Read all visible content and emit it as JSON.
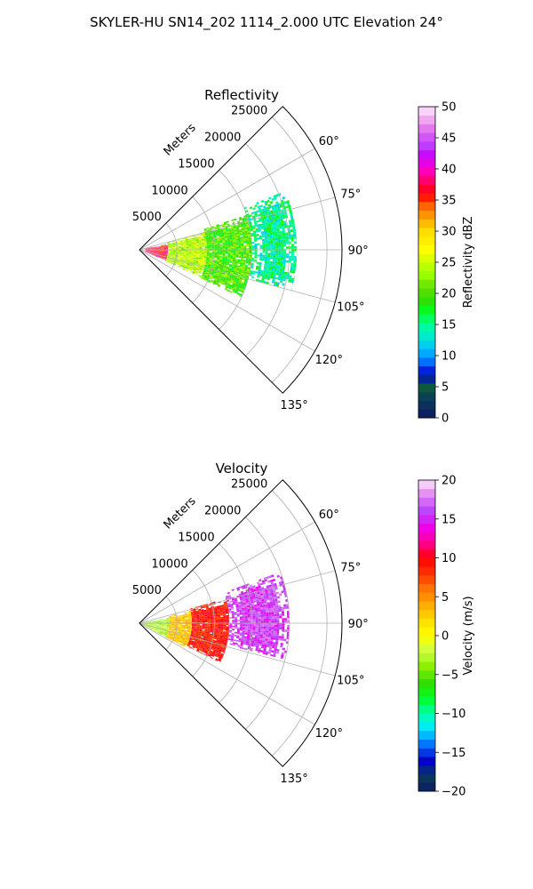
{
  "figure": {
    "title": "SKYLER-HU  SN14_202  1114_2.000 UTC Elevation 24°"
  },
  "chart_data": [
    {
      "type": "heatmap",
      "projection": "polar-sector",
      "title": "Reflectivity",
      "radial_axis_label": "Meters",
      "radial_ticks": [
        5000,
        10000,
        15000,
        20000,
        25000
      ],
      "radial_tick_labels": [
        "5000",
        "10000",
        "15000",
        "20000",
        "25000"
      ],
      "r_range": [
        0,
        27000
      ],
      "angular_ticks": [
        60,
        75,
        90,
        105,
        120,
        135
      ],
      "angular_tick_labels": [
        "60°",
        "75°",
        "90°",
        "105°",
        "120°",
        "135°"
      ],
      "theta_range": [
        45,
        135
      ],
      "grid": true,
      "colorbar": {
        "label": "Reflectivity dBZ",
        "range": [
          0,
          50
        ],
        "ticks": [
          0,
          5,
          10,
          15,
          20,
          25,
          30,
          35,
          40,
          45,
          50
        ],
        "tick_labels": [
          "0",
          "5",
          "10",
          "15",
          "20",
          "25",
          "30",
          "35",
          "40",
          "45",
          "50"
        ],
        "colormap": "pyart_NWSRef",
        "stops": [
          {
            "v": 0,
            "c": "#0c1a60"
          },
          {
            "v": 3,
            "c": "#0a3a5a"
          },
          {
            "v": 5,
            "c": "#0c5c3c"
          },
          {
            "v": 7,
            "c": "#0000cc"
          },
          {
            "v": 9,
            "c": "#0070ff"
          },
          {
            "v": 11,
            "c": "#00bfff"
          },
          {
            "v": 13,
            "c": "#00e8d0"
          },
          {
            "v": 15,
            "c": "#00ff99"
          },
          {
            "v": 17,
            "c": "#00ff22"
          },
          {
            "v": 19,
            "c": "#33dd00"
          },
          {
            "v": 21,
            "c": "#66e000"
          },
          {
            "v": 23,
            "c": "#99ff00"
          },
          {
            "v": 25,
            "c": "#ccff00"
          },
          {
            "v": 27,
            "c": "#ffff00"
          },
          {
            "v": 30,
            "c": "#ffdd00"
          },
          {
            "v": 32,
            "c": "#ffaa00"
          },
          {
            "v": 34,
            "c": "#ff6600"
          },
          {
            "v": 36,
            "c": "#ff0000"
          },
          {
            "v": 38,
            "c": "#ff0066"
          },
          {
            "v": 40,
            "c": "#ff00cc"
          },
          {
            "v": 42,
            "c": "#cc00ff"
          },
          {
            "v": 44,
            "c": "#bb44ff"
          },
          {
            "v": 46,
            "c": "#e066ee"
          },
          {
            "v": 48,
            "c": "#f0aaf0"
          },
          {
            "v": 50,
            "c": "#fce8fc"
          }
        ]
      },
      "data_description": "radar echoes within ~0–21 km, azimuth ~70°–115°",
      "echo_regions": [
        {
          "r": [
            800,
            3800
          ],
          "theta": [
            78,
            112
          ],
          "v": 37
        },
        {
          "r": [
            3800,
            9000
          ],
          "theta": [
            75,
            114
          ],
          "v": 24
        },
        {
          "r": [
            9000,
            15000
          ],
          "theta": [
            72,
            115
          ],
          "v": 20
        },
        {
          "r": [
            15000,
            21000
          ],
          "theta": [
            68,
            105
          ],
          "v": 15
        }
      ]
    },
    {
      "type": "heatmap",
      "projection": "polar-sector",
      "title": "Velocity",
      "radial_axis_label": "Meters",
      "radial_ticks": [
        5000,
        10000,
        15000,
        20000,
        25000
      ],
      "radial_tick_labels": [
        "5000",
        "10000",
        "15000",
        "20000",
        "25000"
      ],
      "r_range": [
        0,
        27000
      ],
      "angular_ticks": [
        60,
        75,
        90,
        105,
        120,
        135
      ],
      "angular_tick_labels": [
        "60°",
        "75°",
        "90°",
        "105°",
        "120°",
        "135°"
      ],
      "theta_range": [
        45,
        135
      ],
      "grid": true,
      "colorbar": {
        "label": "Velocity (m/s)",
        "range": [
          -20,
          20
        ],
        "ticks": [
          -20,
          -15,
          -10,
          -5,
          0,
          5,
          10,
          15,
          20
        ],
        "tick_labels": [
          "−20",
          "−15",
          "−10",
          "−5",
          "0",
          "5",
          "10",
          "15",
          "20"
        ],
        "colormap": "pyart_BuDRd-like",
        "stops": [
          {
            "v": -20,
            "c": "#0c1a60"
          },
          {
            "v": -18,
            "c": "#0a3a5a"
          },
          {
            "v": -16,
            "c": "#0000cc"
          },
          {
            "v": -14,
            "c": "#0070ff"
          },
          {
            "v": -12,
            "c": "#00e8ff"
          },
          {
            "v": -10,
            "c": "#00ffb0"
          },
          {
            "v": -8,
            "c": "#00ff22"
          },
          {
            "v": -6,
            "c": "#33dd00"
          },
          {
            "v": -4,
            "c": "#88ee00"
          },
          {
            "v": -2,
            "c": "#ccff44"
          },
          {
            "v": 0,
            "c": "#ffff00"
          },
          {
            "v": 2,
            "c": "#ffdd00"
          },
          {
            "v": 4,
            "c": "#ffaa00"
          },
          {
            "v": 6,
            "c": "#ff7700"
          },
          {
            "v": 8,
            "c": "#ff3300"
          },
          {
            "v": 10,
            "c": "#ff0000"
          },
          {
            "v": 12,
            "c": "#ff0099"
          },
          {
            "v": 14,
            "c": "#ee00ee"
          },
          {
            "v": 16,
            "c": "#bb44ff"
          },
          {
            "v": 18,
            "c": "#e080f0"
          },
          {
            "v": 20,
            "c": "#fce8fc"
          }
        ]
      },
      "data_description": "radial velocity within ~0–20 km, azimuth ~70°–118°",
      "echo_regions": [
        {
          "r": [
            500,
            4000
          ],
          "theta": [
            80,
            118
          ],
          "v": -3
        },
        {
          "r": [
            4000,
            7000
          ],
          "theta": [
            76,
            118
          ],
          "v": 3
        },
        {
          "r": [
            7000,
            12000
          ],
          "theta": [
            74,
            116
          ],
          "v": 9
        },
        {
          "r": [
            12000,
            20000
          ],
          "theta": [
            70,
            104
          ],
          "v": 16
        }
      ]
    }
  ]
}
